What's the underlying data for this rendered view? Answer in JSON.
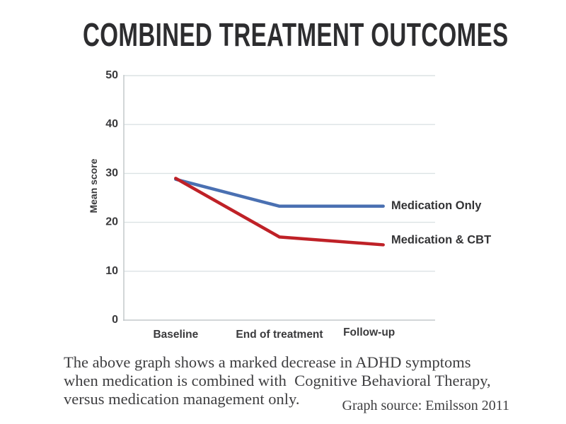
{
  "title": "COMBINED TREATMENT OUTCOMES",
  "chart_data": {
    "type": "line",
    "categories": [
      "Baseline",
      "End of treatment",
      "Follow-up"
    ],
    "series": [
      {
        "name": "Medication Only",
        "values": [
          28.8,
          23.3,
          23.3
        ],
        "color": "#4a70b2"
      },
      {
        "name": "Medication & CBT",
        "values": [
          29.0,
          17.0,
          15.4
        ],
        "color": "#bf2127"
      }
    ],
    "xlabel": "",
    "ylabel": "Mean score",
    "ylim": [
      0,
      50
    ],
    "yticks": [
      0,
      10,
      20,
      30,
      40,
      50
    ],
    "grid": true,
    "legend_position": "right of last data points"
  },
  "caption": {
    "lines": [
      "The above graph shows a marked decrease in ADHD symptoms",
      "when medication is combined with  Cognitive Behavioral Therapy,",
      "versus medication management only."
    ]
  },
  "source": "Graph source: Emilsson 2011",
  "colors": {
    "title_text": "#2d2d2f",
    "axis_text": "#3a3a3c",
    "gridline": "#dbe2e4",
    "axis_line": "#c3c9cb",
    "caption_text": "#3e3e40",
    "background": "#ffffff",
    "medication_only_line": "#4a70b2",
    "medication_cbt_line": "#bf2127"
  }
}
